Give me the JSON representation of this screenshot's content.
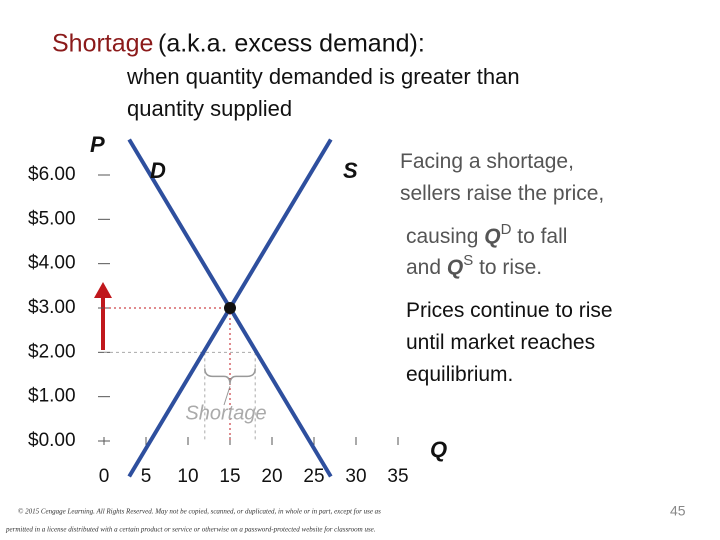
{
  "chart_data": {
    "type": "line",
    "title_term": "Shortage",
    "title": "(a.k.a. excess demand):",
    "subtitle": [
      "when quantity demanded is greater than",
      "quantity supplied"
    ],
    "y_label": "P",
    "x_label": "Q",
    "xlim": [
      0,
      35
    ],
    "xticks": [
      0,
      5,
      10,
      15,
      20,
      25,
      30,
      35
    ],
    "ylim": [
      0,
      6
    ],
    "yticks": [
      {
        "value": 0,
        "label": "$0.00"
      },
      {
        "value": 1,
        "label": "$1.00"
      },
      {
        "value": 2,
        "label": "$2.00"
      },
      {
        "value": 3,
        "label": "$3.00"
      },
      {
        "value": 4,
        "label": "$4.00"
      },
      {
        "value": 5,
        "label": "$5.00"
      },
      {
        "value": 6,
        "label": "$6.00"
      }
    ],
    "series": [
      {
        "name": "D",
        "color": "#2e4f9e",
        "x": [
          3,
          27
        ],
        "values": [
          6.8,
          -0.8
        ]
      },
      {
        "name": "S",
        "color": "#2e4f9e",
        "x": [
          3,
          27
        ],
        "values": [
          -0.8,
          6.8
        ]
      }
    ],
    "equilibrium": {
      "x": 15,
      "y": 3
    },
    "shortage": {
      "label": "Shortage",
      "price": 2,
      "qs": 12,
      "qd": 18
    },
    "annotations": [
      [
        "Facing a shortage,"
      ],
      [
        "sellers raise the price,"
      ],
      [
        "causing ",
        "Q",
        "D",
        " to fall"
      ],
      [
        "and ",
        "Q",
        "S",
        " to rise."
      ],
      [
        "Prices continue to rise"
      ],
      [
        "until market reaches"
      ],
      [
        "equilibrium."
      ]
    ],
    "footer": [
      "© 2015 Cengage Learning. All Rights Reserved. May not be copied, scanned, or duplicated, in whole or in part, except for use as",
      "permitted in a license distributed with a certain product or service or otherwise on a password-protected website for classroom use."
    ],
    "page_number": "45"
  }
}
